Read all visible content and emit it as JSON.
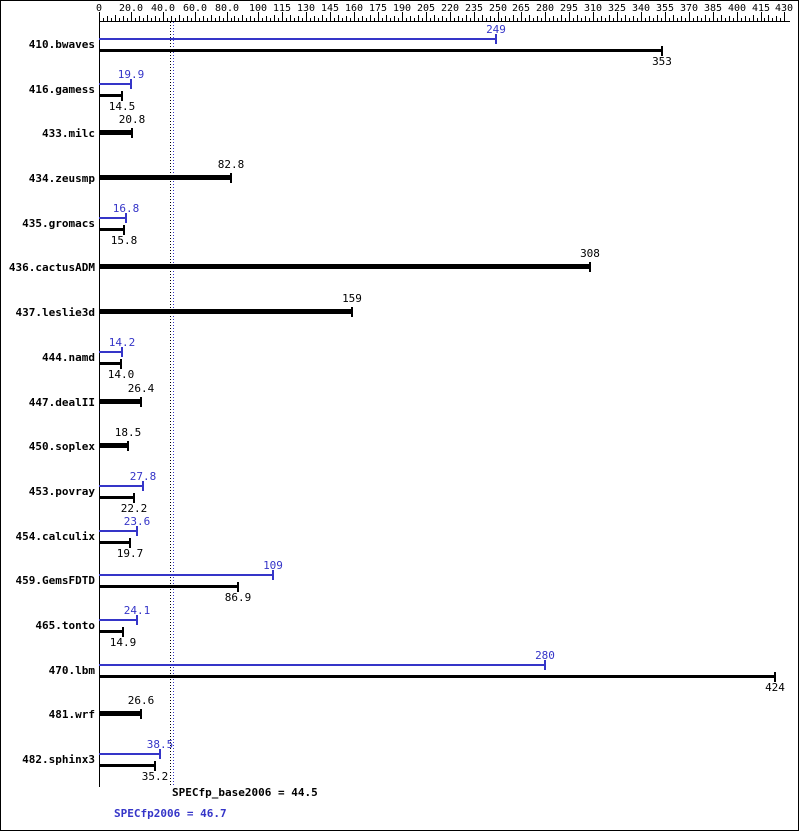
{
  "chart_data": {
    "type": "bar",
    "orientation": "horizontal",
    "description": "SPEC CFP2006 result graph: per-benchmark ratios, peak (blue) and base (black); single black bar when base equals peak",
    "axis": {
      "min": 0,
      "max": 430,
      "minor_step": 2.5,
      "major_ticks": [
        {
          "value": 0,
          "label": "0"
        },
        {
          "value": 20,
          "label": "20.0"
        },
        {
          "value": 40,
          "label": "40.0"
        },
        {
          "value": 60,
          "label": "60.0"
        },
        {
          "value": 80,
          "label": "80.0"
        },
        {
          "value": 100,
          "label": "100"
        },
        {
          "value": 115,
          "label": "115"
        },
        {
          "value": 130,
          "label": "130"
        },
        {
          "value": 145,
          "label": "145"
        },
        {
          "value": 160,
          "label": "160"
        },
        {
          "value": 175,
          "label": "175"
        },
        {
          "value": 190,
          "label": "190"
        },
        {
          "value": 205,
          "label": "205"
        },
        {
          "value": 220,
          "label": "220"
        },
        {
          "value": 235,
          "label": "235"
        },
        {
          "value": 250,
          "label": "250"
        },
        {
          "value": 265,
          "label": "265"
        },
        {
          "value": 280,
          "label": "280"
        },
        {
          "value": 295,
          "label": "295"
        },
        {
          "value": 310,
          "label": "310"
        },
        {
          "value": 325,
          "label": "325"
        },
        {
          "value": 340,
          "label": "340"
        },
        {
          "value": 355,
          "label": "355"
        },
        {
          "value": 370,
          "label": "370"
        },
        {
          "value": 385,
          "label": "385"
        },
        {
          "value": 400,
          "label": "400"
        },
        {
          "value": 415,
          "label": "415"
        },
        {
          "value": 430,
          "label": "430"
        }
      ]
    },
    "colors": {
      "peak": "#3535c8",
      "base": "#000000"
    },
    "benchmarks": [
      {
        "name": "410.bwaves",
        "peak": {
          "value": 249,
          "label": "249"
        },
        "base": {
          "value": 353,
          "label": "353"
        }
      },
      {
        "name": "416.gamess",
        "peak": {
          "value": 19.9,
          "label": "19.9"
        },
        "base": {
          "value": 14.5,
          "label": "14.5"
        }
      },
      {
        "name": "433.milc",
        "peak": null,
        "base": {
          "value": 20.8,
          "label": "20.8"
        }
      },
      {
        "name": "434.zeusmp",
        "peak": null,
        "base": {
          "value": 82.8,
          "label": "82.8"
        }
      },
      {
        "name": "435.gromacs",
        "peak": {
          "value": 16.8,
          "label": "16.8"
        },
        "base": {
          "value": 15.8,
          "label": "15.8"
        }
      },
      {
        "name": "436.cactusADM",
        "peak": null,
        "base": {
          "value": 308,
          "label": "308"
        }
      },
      {
        "name": "437.leslie3d",
        "peak": null,
        "base": {
          "value": 159,
          "label": "159"
        }
      },
      {
        "name": "444.namd",
        "peak": {
          "value": 14.2,
          "label": "14.2"
        },
        "base": {
          "value": 14.0,
          "label": "14.0"
        }
      },
      {
        "name": "447.dealII",
        "peak": null,
        "base": {
          "value": 26.4,
          "label": "26.4"
        }
      },
      {
        "name": "450.soplex",
        "peak": null,
        "base": {
          "value": 18.5,
          "label": "18.5"
        }
      },
      {
        "name": "453.povray",
        "peak": {
          "value": 27.8,
          "label": "27.8"
        },
        "base": {
          "value": 22.2,
          "label": "22.2"
        }
      },
      {
        "name": "454.calculix",
        "peak": {
          "value": 23.6,
          "label": "23.6"
        },
        "base": {
          "value": 19.7,
          "label": "19.7"
        }
      },
      {
        "name": "459.GemsFDTD",
        "peak": {
          "value": 109,
          "label": "109"
        },
        "base": {
          "value": 86.9,
          "label": "86.9"
        }
      },
      {
        "name": "465.tonto",
        "peak": {
          "value": 24.1,
          "label": "24.1"
        },
        "base": {
          "value": 14.9,
          "label": "14.9"
        }
      },
      {
        "name": "470.lbm",
        "peak": {
          "value": 280,
          "label": "280"
        },
        "base": {
          "value": 424,
          "label": "424"
        }
      },
      {
        "name": "481.wrf",
        "peak": null,
        "base": {
          "value": 26.6,
          "label": "26.6"
        }
      },
      {
        "name": "482.sphinx3",
        "peak": {
          "value": 38.5,
          "label": "38.5"
        },
        "base": {
          "value": 35.2,
          "label": "35.2"
        }
      }
    ],
    "reference_lines": [
      {
        "value": 44.5,
        "color": "#000000",
        "label": "SPECfp_base2006 = 44.5"
      },
      {
        "value": 46.7,
        "color": "#3535c8",
        "label": "SPECfp2006 = 46.7"
      }
    ],
    "summary": {
      "base": 44.5,
      "peak": 46.7
    },
    "footer": {
      "base_summary": "SPECfp_base2006 = 44.5",
      "peak_summary": "SPECfp2006 = 46.7"
    }
  }
}
